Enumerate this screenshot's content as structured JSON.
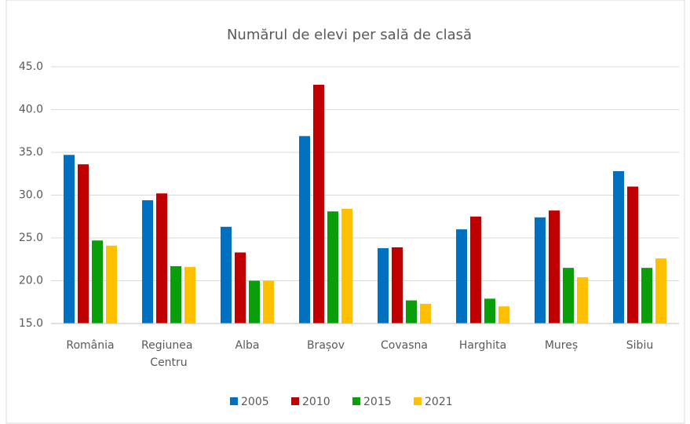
{
  "chart_data": {
    "type": "bar",
    "title": "Numărul de elevi per sală de clasă",
    "categories": [
      "România",
      "Regiunea Centru",
      "Alba",
      "Brașov",
      "Covasna",
      "Harghita",
      "Mureș",
      "Sibiu"
    ],
    "series": [
      {
        "name": "2005",
        "color": "#0070c0",
        "values": [
          34.7,
          29.4,
          26.3,
          36.9,
          23.8,
          26.0,
          27.4,
          32.8
        ]
      },
      {
        "name": "2010",
        "color": "#c00000",
        "values": [
          33.6,
          30.2,
          23.3,
          42.9,
          23.9,
          27.5,
          28.2,
          31.0
        ]
      },
      {
        "name": "2015",
        "color": "#0a9e0a",
        "values": [
          24.7,
          21.7,
          20.0,
          28.1,
          17.7,
          17.9,
          21.5,
          21.5
        ]
      },
      {
        "name": "2021",
        "color": "#ffc000",
        "values": [
          24.1,
          21.6,
          20.0,
          28.4,
          17.3,
          17.0,
          20.4,
          22.6
        ]
      }
    ],
    "ylim": [
      15,
      45
    ],
    "yticks": [
      {
        "value": 15,
        "label": "15.0"
      },
      {
        "value": 20,
        "label": "20.0"
      },
      {
        "value": 25,
        "label": "25.0"
      },
      {
        "value": 30,
        "label": "30.0"
      },
      {
        "value": 35,
        "label": "35.0"
      },
      {
        "value": 40,
        "label": "40.0"
      },
      {
        "value": 45,
        "label": "45.0"
      }
    ],
    "grid": true,
    "legend": "bottom"
  }
}
